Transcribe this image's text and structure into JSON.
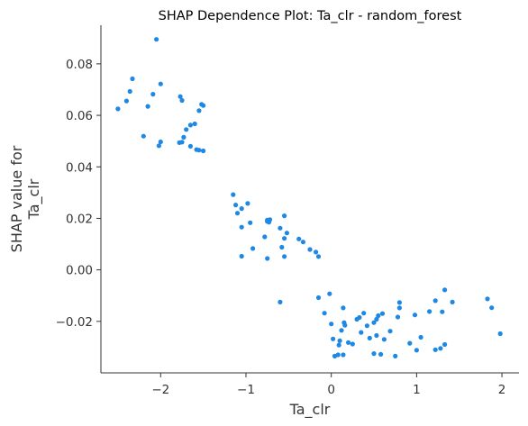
{
  "chart_data": {
    "type": "scatter",
    "title": "SHAP Dependence Plot: Ta_clr - random_forest",
    "xlabel": "Ta_clr",
    "ylabel_lines": [
      "SHAP value for",
      "Ta_clr"
    ],
    "xlim": [
      -2.7,
      2.2
    ],
    "ylim": [
      -0.04,
      0.095
    ],
    "xticks": [
      -2,
      -1,
      0,
      1,
      2
    ],
    "xtick_labels": [
      "−2",
      "−1",
      "0",
      "1",
      "2"
    ],
    "yticks": [
      -0.02,
      0.0,
      0.02,
      0.04,
      0.06,
      0.08
    ],
    "ytick_labels": [
      "−0.02",
      "0.00",
      "0.02",
      "0.04",
      "0.06",
      "0.08"
    ],
    "grid": false,
    "point_color": "#1E88E5",
    "points": [
      [
        -2.05,
        0.0895
      ],
      [
        -2.33,
        0.0742
      ],
      [
        -2.0,
        0.0722
      ],
      [
        -2.36,
        0.0693
      ],
      [
        -1.77,
        0.0673
      ],
      [
        -2.09,
        0.0682
      ],
      [
        -2.4,
        0.0656
      ],
      [
        -1.75,
        0.0658
      ],
      [
        -2.15,
        0.0635
      ],
      [
        -2.5,
        0.0625
      ],
      [
        -1.5,
        0.0638
      ],
      [
        -1.55,
        0.0618
      ],
      [
        -1.52,
        0.0643
      ],
      [
        -1.65,
        0.0562
      ],
      [
        -1.6,
        0.0567
      ],
      [
        -1.7,
        0.0545
      ],
      [
        -1.73,
        0.0515
      ],
      [
        -2.2,
        0.0519
      ],
      [
        -2.0,
        0.0497
      ],
      [
        -1.78,
        0.0494
      ],
      [
        -1.75,
        0.0496
      ],
      [
        -2.02,
        0.0482
      ],
      [
        -1.65,
        0.048
      ],
      [
        -1.58,
        0.0467
      ],
      [
        -1.55,
        0.0465
      ],
      [
        -1.5,
        0.0462
      ],
      [
        -1.15,
        0.0292
      ],
      [
        -1.12,
        0.0252
      ],
      [
        -1.05,
        0.0238
      ],
      [
        -0.98,
        0.0258
      ],
      [
        -1.1,
        0.022
      ],
      [
        -0.55,
        0.021
      ],
      [
        -0.72,
        0.0195
      ],
      [
        -0.75,
        0.0188
      ],
      [
        -0.73,
        0.0185
      ],
      [
        -0.75,
        0.0193
      ],
      [
        -0.95,
        0.0183
      ],
      [
        -1.05,
        0.0166
      ],
      [
        -0.6,
        0.0162
      ],
      [
        -0.38,
        0.012
      ],
      [
        -0.52,
        0.0143
      ],
      [
        -0.55,
        0.0122
      ],
      [
        -0.33,
        0.0108
      ],
      [
        -0.78,
        0.0128
      ],
      [
        -0.92,
        0.0083
      ],
      [
        -0.58,
        0.0088
      ],
      [
        -0.25,
        0.0079
      ],
      [
        -0.18,
        0.0069
      ],
      [
        -1.05,
        0.0053
      ],
      [
        -0.75,
        0.0044
      ],
      [
        -0.55,
        0.0052
      ],
      [
        -0.15,
        0.0052
      ],
      [
        -0.6,
        -0.0125
      ],
      [
        -0.15,
        -0.0108
      ],
      [
        -0.02,
        -0.0093
      ],
      [
        0.14,
        -0.0148
      ],
      [
        0.38,
        -0.0168
      ],
      [
        0.55,
        -0.0178
      ],
      [
        0.8,
        -0.0127
      ],
      [
        0.8,
        -0.0148
      ],
      [
        1.05,
        -0.0262
      ],
      [
        1.15,
        -0.0162
      ],
      [
        1.22,
        -0.012
      ],
      [
        1.33,
        -0.0078
      ],
      [
        1.42,
        -0.0125
      ],
      [
        1.83,
        -0.0113
      ],
      [
        1.88,
        -0.0147
      ],
      [
        1.98,
        -0.0248
      ],
      [
        -0.08,
        -0.0168
      ],
      [
        0.0,
        -0.021
      ],
      [
        0.15,
        -0.0205
      ],
      [
        0.3,
        -0.0192
      ],
      [
        0.42,
        -0.0217
      ],
      [
        0.5,
        -0.0205
      ],
      [
        0.6,
        -0.017
      ],
      [
        0.69,
        -0.0238
      ],
      [
        0.78,
        -0.0183
      ],
      [
        0.98,
        -0.0175
      ],
      [
        1.3,
        -0.0163
      ],
      [
        0.02,
        -0.0268
      ],
      [
        0.1,
        -0.0275
      ],
      [
        0.12,
        -0.0235
      ],
      [
        0.2,
        -0.0282
      ],
      [
        0.25,
        -0.0288
      ],
      [
        0.33,
        -0.0185
      ],
      [
        0.35,
        -0.0243
      ],
      [
        0.45,
        -0.0265
      ],
      [
        0.53,
        -0.0255
      ],
      [
        0.62,
        -0.027
      ],
      [
        0.92,
        -0.0285
      ],
      [
        1.0,
        -0.0312
      ],
      [
        1.22,
        -0.031
      ],
      [
        1.28,
        -0.0305
      ],
      [
        1.33,
        -0.029
      ],
      [
        0.04,
        -0.0335
      ],
      [
        0.08,
        -0.033
      ],
      [
        0.14,
        -0.033
      ],
      [
        0.5,
        -0.0325
      ],
      [
        0.58,
        -0.0328
      ],
      [
        0.75,
        -0.0335
      ],
      [
        0.53,
        -0.0192
      ],
      [
        0.16,
        -0.0215
      ],
      [
        0.09,
        -0.0292
      ]
    ]
  }
}
